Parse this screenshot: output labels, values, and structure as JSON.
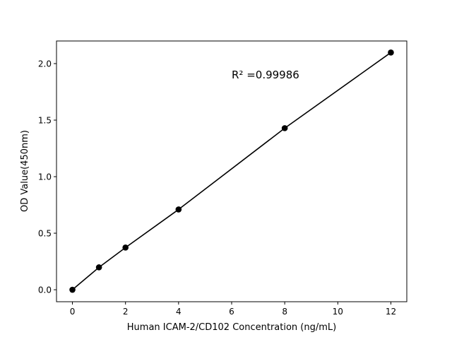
{
  "chart_data": {
    "type": "line",
    "title": "",
    "xlabel": "Human ICAM-2/CD102 Concentration (ng/mL)",
    "ylabel": "OD Value(450nm)",
    "xlim": [
      -0.6,
      12.6
    ],
    "ylim": [
      -0.106,
      2.2
    ],
    "xticks": [
      0,
      2,
      4,
      6,
      8,
      10,
      12
    ],
    "xtick_labels": [
      "0",
      "2",
      "4",
      "6",
      "8",
      "10",
      "12"
    ],
    "yticks": [
      0.0,
      0.5,
      1.0,
      1.5,
      2.0
    ],
    "ytick_labels": [
      "0.0",
      "0.5",
      "1.0",
      "1.5",
      "2.0"
    ],
    "grid": false,
    "series": [
      {
        "x": [
          0,
          1,
          2,
          4,
          8,
          12
        ],
        "y": [
          0.0,
          0.198,
          0.373,
          0.71,
          1.429,
          2.098
        ],
        "color": "#000000",
        "marker": "circle"
      }
    ],
    "annotations": [
      {
        "text": "R² =0.99986",
        "x": 6,
        "y": 1.87
      }
    ]
  }
}
